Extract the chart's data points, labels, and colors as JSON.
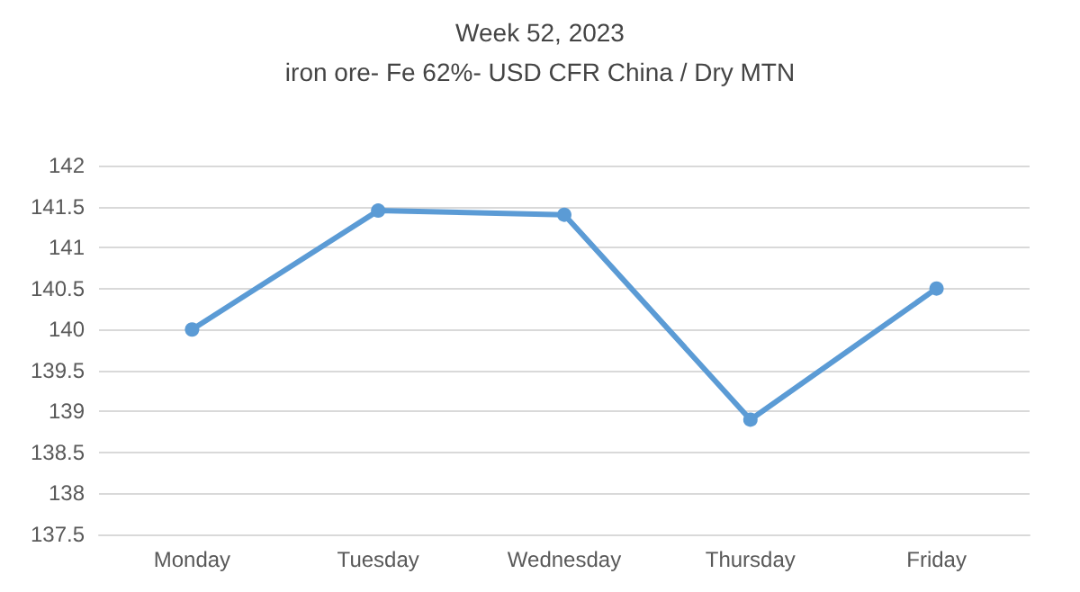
{
  "chart_data": {
    "type": "line",
    "title": "Week 52, 2023",
    "subtitle": "iron ore- Fe 62%- USD CFR China / Dry MTN",
    "categories": [
      "Monday",
      "Tuesday",
      "Wednesday",
      "Thursday",
      "Friday"
    ],
    "series": [
      {
        "color": "#5b9bd5",
        "values": [
          140,
          141.45,
          141.4,
          138.9,
          140.5
        ]
      }
    ],
    "ylim": [
      137.5,
      142
    ],
    "yticks": [
      137.5,
      138,
      138.5,
      139,
      139.5,
      140,
      140.5,
      141,
      141.5,
      142
    ],
    "grid": "y",
    "marker": "circle",
    "line_style": "solid"
  }
}
